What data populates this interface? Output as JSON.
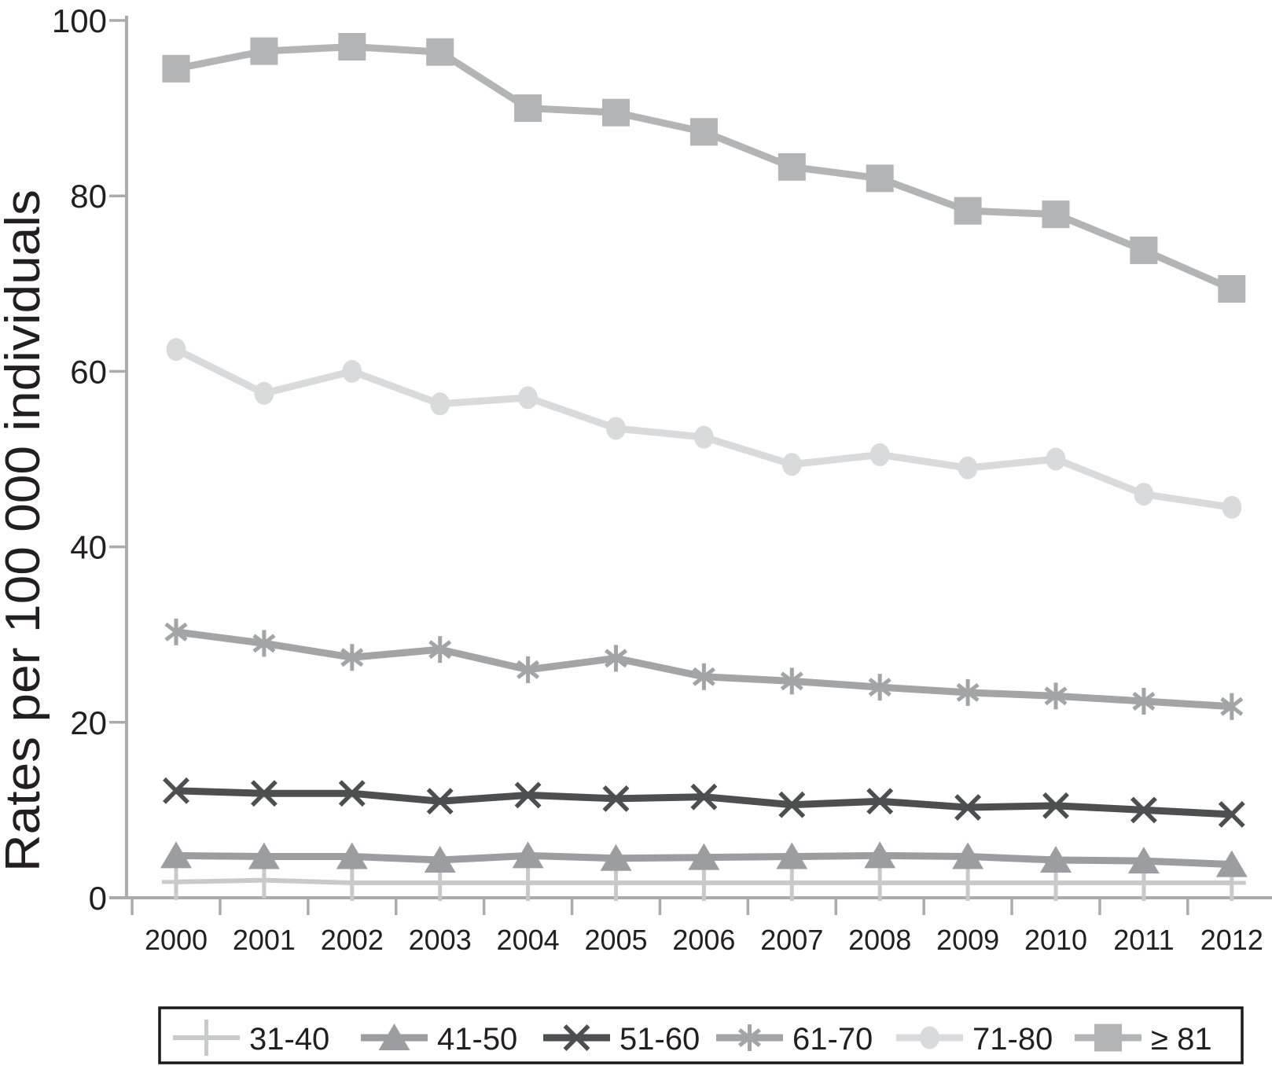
{
  "chart_data": {
    "type": "line",
    "title": "",
    "xlabel": "",
    "ylabel": "Rates per 100 000 individuals",
    "ylim": [
      0,
      100
    ],
    "y_ticks": [
      0,
      20,
      40,
      60,
      80,
      100
    ],
    "grid": false,
    "legend_position": "bottom-box",
    "axis_color": "#a9abad",
    "text_color": "#231f20",
    "legend_border_color": "#1a1a1a",
    "x": [
      2000,
      2001,
      2002,
      2003,
      2004,
      2005,
      2006,
      2007,
      2008,
      2009,
      2010,
      2011,
      2012
    ],
    "series": [
      {
        "name": "31-40",
        "marker": "plus",
        "color": "#c7c9cb",
        "values": [
          1.8,
          2.0,
          1.7,
          1.7,
          1.7,
          1.7,
          1.7,
          1.7,
          1.7,
          1.7,
          1.7,
          1.7,
          1.7
        ]
      },
      {
        "name": "41-50",
        "marker": "triangle",
        "color": "#9b9da0",
        "values": [
          4.8,
          4.7,
          4.7,
          4.3,
          4.8,
          4.5,
          4.6,
          4.7,
          4.8,
          4.7,
          4.3,
          4.2,
          3.8
        ]
      },
      {
        "name": "51-60",
        "marker": "x",
        "color": "#4c4e50",
        "values": [
          12.2,
          11.9,
          11.9,
          11.0,
          11.7,
          11.3,
          11.5,
          10.6,
          11.0,
          10.3,
          10.5,
          10.0,
          9.5
        ]
      },
      {
        "name": "61-70",
        "marker": "asterisk",
        "color": "#a2a4a6",
        "values": [
          30.3,
          29.0,
          27.4,
          28.3,
          26.0,
          27.3,
          25.2,
          24.7,
          24.0,
          23.4,
          23.0,
          22.4,
          21.8
        ]
      },
      {
        "name": "71-80",
        "marker": "circle",
        "color": "#d8dadc",
        "values": [
          62.5,
          57.5,
          60.0,
          56.3,
          57.0,
          53.5,
          52.5,
          49.4,
          50.5,
          49.0,
          50.0,
          46.0,
          44.5
        ]
      },
      {
        "name": "≥ 81",
        "marker": "square",
        "color": "#b2b4b6",
        "values": [
          94.5,
          96.5,
          97.0,
          96.4,
          90.0,
          89.5,
          87.3,
          83.3,
          82.0,
          78.3,
          77.9,
          73.8,
          69.4
        ]
      }
    ]
  }
}
